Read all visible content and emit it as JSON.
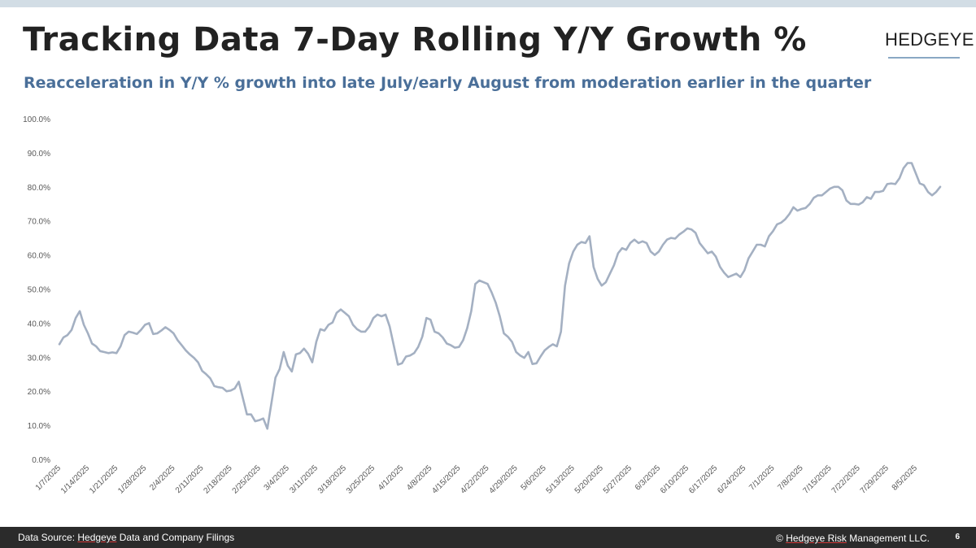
{
  "header": {
    "title": "Tracking Data 7-Day Rolling Y/Y Growth %",
    "subtitle": "Reacceleration in Y/Y % growth into late July/early August from moderation earlier in the quarter",
    "brand": "HEDGEYE"
  },
  "footer": {
    "source_prefix": "Data Source: ",
    "source_link": "Hedgeye",
    "source_suffix": " Data and Company Filings",
    "copyright_prefix": "© ",
    "copyright_link": "Hedgeye",
    "copyright_mid": " Risk",
    "copyright_suffix": " Management LLC.",
    "page_number": "6"
  },
  "colors": {
    "line": "#a4b0c2",
    "title": "#222222",
    "subtitle": "#4a6f99",
    "footer_bg": "#2b2b2b",
    "top_bar": "#d2dde5"
  },
  "chart_data": {
    "type": "line",
    "title": "",
    "xlabel": "",
    "ylabel": "",
    "ylim": [
      0,
      100
    ],
    "y_ticks": [
      "0.0%",
      "10.0%",
      "20.0%",
      "30.0%",
      "40.0%",
      "50.0%",
      "60.0%",
      "70.0%",
      "80.0%",
      "90.0%",
      "100.0%"
    ],
    "x_ticks": [
      "1/7/2025",
      "1/14/2025",
      "1/21/2025",
      "1/28/2025",
      "2/4/2025",
      "2/11/2025",
      "2/18/2025",
      "2/25/2025",
      "3/4/2025",
      "3/11/2025",
      "3/18/2025",
      "3/25/2025",
      "4/1/2025",
      "4/8/2025",
      "4/15/2025",
      "4/22/2025",
      "4/29/2025",
      "5/6/2025",
      "5/13/2025",
      "5/20/2025",
      "5/27/2025",
      "6/3/2025",
      "6/10/2025",
      "6/17/2025",
      "6/24/2025",
      "7/1/2025",
      "7/8/2025",
      "7/15/2025",
      "7/22/2025",
      "7/29/2025",
      "8/5/2025"
    ],
    "grid": false,
    "legend": "none",
    "series": [
      {
        "values": [
          33.8,
          35.8,
          36.5,
          38.0,
          41.5,
          43.5,
          39.5,
          37.0,
          34.0,
          33.2,
          31.8,
          31.5,
          31.2,
          31.4,
          31.2,
          33.2,
          36.5,
          37.5,
          37.2,
          36.8,
          38.0,
          39.5,
          40.0,
          36.8,
          37.0,
          37.8,
          38.8,
          38.0,
          37.0,
          35.0,
          33.5,
          32.0,
          30.8,
          29.8,
          28.5,
          26.0,
          25.0,
          23.8,
          21.5,
          21.2,
          21.0,
          20.0,
          20.2,
          20.8,
          22.8,
          18.0,
          13.2,
          13.2,
          11.2,
          11.5,
          12.0,
          9.0,
          16.5,
          24.0,
          26.5,
          31.5,
          27.5,
          25.8,
          30.8,
          31.2,
          32.5,
          31.0,
          28.5,
          34.5,
          38.2,
          37.8,
          39.5,
          40.2,
          43.0,
          44.0,
          43.0,
          42.0,
          39.5,
          38.2,
          37.5,
          37.5,
          39.0,
          41.5,
          42.5,
          42.0,
          42.5,
          39.0,
          33.5,
          27.8,
          28.2,
          30.2,
          30.5,
          31.2,
          33.0,
          36.0,
          41.5,
          41.0,
          37.5,
          37.0,
          35.8,
          34.0,
          33.5,
          32.8,
          33.0,
          35.0,
          38.5,
          43.5,
          51.5,
          52.5,
          52.0,
          51.5,
          49.0,
          46.0,
          42.0,
          37.0,
          36.0,
          34.5,
          31.5,
          30.5,
          29.8,
          31.5,
          28.0,
          28.2,
          30.2,
          32.0,
          33.0,
          33.8,
          33.2,
          37.5,
          51.0,
          57.5,
          61.0,
          63.0,
          63.8,
          63.5,
          65.5,
          56.5,
          53.0,
          51.0,
          52.0,
          54.5,
          57.0,
          60.5,
          62.0,
          61.5,
          63.5,
          64.5,
          63.5,
          64.0,
          63.5,
          61.0,
          60.0,
          61.0,
          63.0,
          64.5,
          65.0,
          64.8,
          66.0,
          66.8,
          67.8,
          67.5,
          66.5,
          63.5,
          62.0,
          60.5,
          61.0,
          59.5,
          56.5,
          54.8,
          53.5,
          54.0,
          54.5,
          53.5,
          55.5,
          59.0,
          61.0,
          63.0,
          63.0,
          62.5,
          65.5,
          67.0,
          69.0,
          69.5,
          70.5,
          72.0,
          74.0,
          73.0,
          73.5,
          73.8,
          75.0,
          76.8,
          77.5,
          77.5,
          78.5,
          79.5,
          80.0,
          80.0,
          79.0,
          76.0,
          75.0,
          75.0,
          74.8,
          75.5,
          77.0,
          76.5,
          78.5,
          78.5,
          78.8,
          80.8,
          81.0,
          80.8,
          82.5,
          85.5,
          87.0,
          87.0,
          84.0,
          81.0,
          80.5,
          78.5,
          77.5,
          78.5,
          80.0
        ]
      }
    ]
  }
}
